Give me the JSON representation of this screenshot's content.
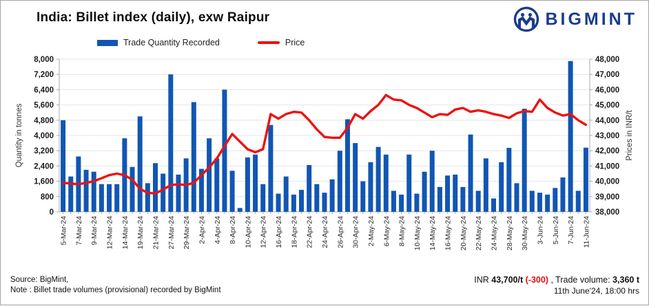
{
  "header": {
    "title": "India: Billet index (daily), exw Raipur",
    "brand": "BIGMINT"
  },
  "legend": {
    "bar_label": "Trade Quantity Recorded",
    "line_label": "Price"
  },
  "chart_data": {
    "type": "bar+line",
    "title": "India: Billet index (daily), exw Raipur",
    "bar_series": "Trade Quantity Recorded",
    "line_series": "Price",
    "left_axis": {
      "label": "Quantity in tonnes",
      "min": 0,
      "max": 8000,
      "step": 800,
      "grid": true
    },
    "right_axis": {
      "label": "Prices in INR/t",
      "min": 38000,
      "max": 48000,
      "step": 1000
    },
    "legend_position": "top",
    "colors": {
      "bar": "#1156b3",
      "line": "#ed1111",
      "grid": "#e4e4e4",
      "axis": "#a8a8a8",
      "tick_text": "#1a1a1a",
      "x_text": "#2a2a2a"
    },
    "points": [
      {
        "date": "5-Mar-24",
        "qty": 4800,
        "price": 39900
      },
      {
        "date": "",
        "qty": 1850,
        "price": 39850
      },
      {
        "date": "7-Mar-24",
        "qty": 2900,
        "price": 39800
      },
      {
        "date": "",
        "qty": 2200,
        "price": 39900
      },
      {
        "date": "9-Mar-24",
        "qty": 2100,
        "price": 40000
      },
      {
        "date": "",
        "qty": 1450,
        "price": 40200
      },
      {
        "date": "12-Mar-24",
        "qty": 1450,
        "price": 40400
      },
      {
        "date": "",
        "qty": 1450,
        "price": 40500
      },
      {
        "date": "14-Mar-24",
        "qty": 3850,
        "price": 40400
      },
      {
        "date": "",
        "qty": 2350,
        "price": 40100
      },
      {
        "date": "19-Mar-24",
        "qty": 5000,
        "price": 39500
      },
      {
        "date": "",
        "qty": 1500,
        "price": 39250
      },
      {
        "date": "21-Mar-24",
        "qty": 2550,
        "price": 39200
      },
      {
        "date": "",
        "qty": 2000,
        "price": 39450
      },
      {
        "date": "27-Mar-24",
        "qty": 7200,
        "price": 39750
      },
      {
        "date": "",
        "qty": 1950,
        "price": 39800
      },
      {
        "date": "29-Mar-24",
        "qty": 2800,
        "price": 39750
      },
      {
        "date": "",
        "qty": 5750,
        "price": 39900
      },
      {
        "date": "2-Apr-24",
        "qty": 2250,
        "price": 40400
      },
      {
        "date": "",
        "qty": 3850,
        "price": 40900
      },
      {
        "date": "4-Apr-24",
        "qty": 2800,
        "price": 41500
      },
      {
        "date": "",
        "qty": 6400,
        "price": 42300
      },
      {
        "date": "8-Apr-24",
        "qty": 2150,
        "price": 43100
      },
      {
        "date": "",
        "qty": 200,
        "price": 42600
      },
      {
        "date": "10-Apr-24",
        "qty": 2850,
        "price": 42100
      },
      {
        "date": "",
        "qty": 3000,
        "price": 41900
      },
      {
        "date": "12-Apr-24",
        "qty": 1450,
        "price": 42100
      },
      {
        "date": "",
        "qty": 4550,
        "price": 44400
      },
      {
        "date": "16-Apr-24",
        "qty": 950,
        "price": 44100
      },
      {
        "date": "",
        "qty": 1850,
        "price": 44400
      },
      {
        "date": "18-Apr-24",
        "qty": 900,
        "price": 44550
      },
      {
        "date": "",
        "qty": 1150,
        "price": 44500
      },
      {
        "date": "22-Apr-24",
        "qty": 2450,
        "price": 44000
      },
      {
        "date": "",
        "qty": 1450,
        "price": 43400
      },
      {
        "date": "24-Apr-24",
        "qty": 1000,
        "price": 42900
      },
      {
        "date": "",
        "qty": 1700,
        "price": 42850
      },
      {
        "date": "26-Apr-24",
        "qty": 3200,
        "price": 42850
      },
      {
        "date": "",
        "qty": 4850,
        "price": 43500
      },
      {
        "date": "30-Apr-24",
        "qty": 3600,
        "price": 44400
      },
      {
        "date": "",
        "qty": 1600,
        "price": 44100
      },
      {
        "date": "2-May-24",
        "qty": 2600,
        "price": 44600
      },
      {
        "date": "",
        "qty": 3400,
        "price": 45000
      },
      {
        "date": "6-May-24",
        "qty": 3000,
        "price": 45650
      },
      {
        "date": "",
        "qty": 1100,
        "price": 45350
      },
      {
        "date": "8-May-24",
        "qty": 900,
        "price": 45300
      },
      {
        "date": "",
        "qty": 3000,
        "price": 45000
      },
      {
        "date": "10-May-24",
        "qty": 950,
        "price": 44800
      },
      {
        "date": "",
        "qty": 2100,
        "price": 44500
      },
      {
        "date": "14-May-24",
        "qty": 3200,
        "price": 44200
      },
      {
        "date": "",
        "qty": 1300,
        "price": 44400
      },
      {
        "date": "16-May-24",
        "qty": 1900,
        "price": 44350
      },
      {
        "date": "",
        "qty": 1950,
        "price": 44700
      },
      {
        "date": "20-May-24",
        "qty": 1300,
        "price": 44800
      },
      {
        "date": "",
        "qty": 4050,
        "price": 44550
      },
      {
        "date": "22-May-24",
        "qty": 1100,
        "price": 44650
      },
      {
        "date": "",
        "qty": 2800,
        "price": 44550
      },
      {
        "date": "24-May-24",
        "qty": 700,
        "price": 44400
      },
      {
        "date": "",
        "qty": 2600,
        "price": 44300
      },
      {
        "date": "28-May-24",
        "qty": 3350,
        "price": 44150
      },
      {
        "date": "",
        "qty": 1500,
        "price": 44450
      },
      {
        "date": "30-May-24",
        "qty": 5400,
        "price": 44600
      },
      {
        "date": "",
        "qty": 1100,
        "price": 44550
      },
      {
        "date": "3-Jun-24",
        "qty": 1000,
        "price": 45350
      },
      {
        "date": "",
        "qty": 900,
        "price": 44800
      },
      {
        "date": "5-Jun-24",
        "qty": 1250,
        "price": 44500
      },
      {
        "date": "",
        "qty": 1800,
        "price": 44300
      },
      {
        "date": "7-Jun-24",
        "qty": 7900,
        "price": 44400
      },
      {
        "date": "",
        "qty": 1100,
        "price": 44000
      },
      {
        "date": "11-Jun-24",
        "qty": 3360,
        "price": 43700
      }
    ]
  },
  "footer": {
    "source_line1": "Source: BigMint,",
    "source_line2": "Note : Billet trade volumes (provisional) recorded by BigMint",
    "price_prefix": "INR ",
    "price_value": "43,700/t ",
    "price_change": "(-300)",
    "volume_label": " , Trade volume: ",
    "volume_value": "3,360 t",
    "timestamp": "11th June'24,  18:00 hrs"
  }
}
